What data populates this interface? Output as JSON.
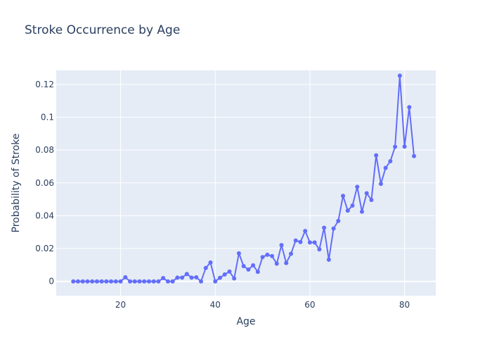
{
  "chart_data": {
    "type": "line",
    "title": "Stroke Occurrence by Age",
    "xlabel": "Age",
    "ylabel": "Probability of Stroke",
    "xlim": [
      6.4,
      86.6
    ],
    "ylim": [
      -0.0087,
      0.1285
    ],
    "x_ticks": [
      20,
      40,
      60,
      80
    ],
    "y_ticks": [
      0,
      0.02,
      0.04,
      0.06,
      0.08,
      0.1,
      0.12
    ],
    "grid": true,
    "legend": "none",
    "colors": {
      "line": "#636efa",
      "plot_bg": "#e5ecf6",
      "grid": "#ffffff",
      "text": "#2a3f5f"
    },
    "series": [
      {
        "x": [
          10,
          11,
          12,
          13,
          14,
          15,
          16,
          17,
          18,
          19,
          20,
          21,
          22,
          23,
          24,
          25,
          26,
          27,
          28,
          29,
          30,
          31,
          32,
          33,
          34,
          35,
          36,
          37,
          38,
          39,
          40,
          41,
          42,
          43,
          44,
          45,
          46,
          47,
          48,
          49,
          50,
          51,
          52,
          53,
          54,
          55,
          56,
          57,
          58,
          59,
          60,
          61,
          62,
          63,
          64,
          65,
          66,
          67,
          68,
          69,
          70,
          71,
          72,
          73,
          74,
          75,
          76,
          77,
          78,
          79,
          80,
          81,
          82
        ],
        "y": [
          0,
          0,
          0,
          0,
          0,
          0,
          0,
          0,
          0,
          0,
          0,
          0.0025,
          0,
          0,
          0,
          0,
          0,
          0,
          0,
          0.002,
          0,
          0,
          0.0023,
          0.0023,
          0.0045,
          0.0023,
          0.0025,
          0,
          0.0082,
          0.0115,
          0,
          0.0022,
          0.0042,
          0.006,
          0.0018,
          0.0171,
          0.0093,
          0.0072,
          0.0098,
          0.0058,
          0.0148,
          0.0162,
          0.0154,
          0.0108,
          0.0221,
          0.0112,
          0.0168,
          0.0249,
          0.024,
          0.0307,
          0.0237,
          0.0237,
          0.0195,
          0.0327,
          0.0132,
          0.0322,
          0.0368,
          0.0521,
          0.0431,
          0.0462,
          0.0576,
          0.0425,
          0.0537,
          0.0496,
          0.0768,
          0.0594,
          0.0691,
          0.0732,
          0.082,
          0.1253,
          0.0821,
          0.1061,
          0.0763
        ]
      }
    ]
  }
}
